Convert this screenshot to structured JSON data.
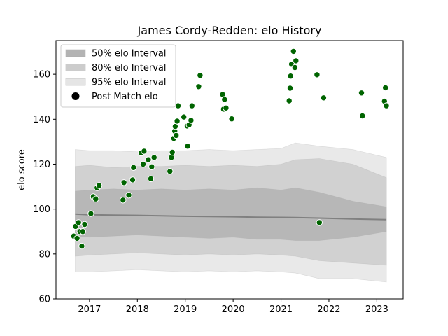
{
  "chart_data": {
    "type": "scatter",
    "title": "James Cordy-Redden: elo History",
    "xlabel": "",
    "ylabel": "elo score",
    "xlim": [
      2016.3,
      2023.55
    ],
    "ylim": [
      60,
      175
    ],
    "x_ticks": [
      2017,
      2018,
      2019,
      2020,
      2021,
      2022,
      2023
    ],
    "x_tick_labels": [
      "2017",
      "2018",
      "2019",
      "2020",
      "2021",
      "2022",
      "2023"
    ],
    "y_ticks": [
      60,
      80,
      100,
      120,
      140,
      160
    ],
    "y_tick_labels": [
      "60",
      "80",
      "100",
      "120",
      "140",
      "160"
    ],
    "grid": false,
    "legend_position": "top-left",
    "legend": [
      {
        "label": "50% elo Interval",
        "kind": "band",
        "color": "#b3b3b3"
      },
      {
        "label": "80% elo Interval",
        "kind": "band",
        "color": "#cccccc"
      },
      {
        "label": "95% elo Interval",
        "kind": "band",
        "color": "#e5e5e5"
      },
      {
        "label": "Post Match elo",
        "kind": "marker",
        "color": "#000000"
      }
    ],
    "colors": {
      "point_fill": "#006400",
      "point_stroke": "#ffffff",
      "median_line": "#808080",
      "band_50": "#b3b3b3",
      "band_80": "#cccccc",
      "band_95": "#e5e5e5"
    },
    "series": [
      {
        "kind": "band",
        "level": "95%",
        "x": [
          2016.7,
          2017.0,
          2017.5,
          2018.0,
          2018.5,
          2019.0,
          2019.5,
          2020.0,
          2020.5,
          2021.0,
          2021.3,
          2021.8,
          2022.5,
          2023.2
        ],
        "upper": [
          126.5,
          126.0,
          126.0,
          125.5,
          126.0,
          126.0,
          126.5,
          126.0,
          126.5,
          127.0,
          129.5,
          128.0,
          126.5,
          123.0
        ],
        "lower": [
          72.0,
          72.0,
          72.5,
          73.0,
          72.5,
          72.0,
          72.5,
          72.0,
          72.5,
          72.0,
          71.5,
          69.0,
          69.0,
          67.5
        ]
      },
      {
        "kind": "band",
        "level": "80%",
        "x": [
          2016.7,
          2017.0,
          2017.5,
          2018.0,
          2018.5,
          2019.0,
          2019.5,
          2020.0,
          2020.5,
          2021.0,
          2021.3,
          2021.8,
          2022.5,
          2023.2
        ],
        "upper": [
          119.0,
          119.5,
          118.5,
          119.0,
          119.0,
          119.5,
          119.0,
          119.5,
          119.0,
          120.0,
          122.0,
          122.5,
          120.0,
          114.0
        ],
        "lower": [
          79.0,
          79.5,
          80.0,
          80.5,
          80.0,
          79.5,
          80.0,
          79.5,
          80.0,
          79.5,
          79.0,
          77.0,
          76.0,
          75.0
        ]
      },
      {
        "kind": "band",
        "level": "50%",
        "x": [
          2016.7,
          2017.0,
          2017.5,
          2018.0,
          2018.5,
          2019.0,
          2019.5,
          2020.0,
          2020.5,
          2021.0,
          2021.3,
          2021.8,
          2022.5,
          2023.2
        ],
        "upper": [
          108.0,
          108.5,
          109.0,
          108.5,
          109.0,
          108.5,
          109.0,
          108.5,
          109.5,
          108.5,
          109.5,
          107.5,
          103.5,
          101.0
        ],
        "lower": [
          88.0,
          87.5,
          88.0,
          88.5,
          88.0,
          87.5,
          87.0,
          87.5,
          86.5,
          86.5,
          86.0,
          86.0,
          87.5,
          90.0
        ]
      },
      {
        "kind": "line",
        "name": "median",
        "x": [
          2016.7,
          2017.0,
          2017.5,
          2018.0,
          2018.5,
          2019.0,
          2019.5,
          2020.0,
          2020.5,
          2021.0,
          2021.3,
          2021.8,
          2022.5,
          2023.2
        ],
        "y": [
          97.8,
          97.5,
          97.3,
          97.2,
          97.0,
          96.8,
          96.7,
          96.6,
          96.4,
          96.3,
          96.2,
          96.0,
          95.6,
          95.3
        ]
      },
      {
        "kind": "points",
        "name": "Post Match elo",
        "points": [
          [
            2016.67,
            88.0
          ],
          [
            2016.71,
            92.3
          ],
          [
            2016.74,
            87.0
          ],
          [
            2016.77,
            94.0
          ],
          [
            2016.8,
            90.0
          ],
          [
            2016.84,
            83.5
          ],
          [
            2016.86,
            90.0
          ],
          [
            2016.9,
            93.2
          ],
          [
            2017.03,
            98.0
          ],
          [
            2017.08,
            105.5
          ],
          [
            2017.13,
            104.5
          ],
          [
            2017.16,
            109.5
          ],
          [
            2017.2,
            110.5
          ],
          [
            2017.7,
            104.0
          ],
          [
            2017.72,
            111.8
          ],
          [
            2017.82,
            106.2
          ],
          [
            2017.9,
            113.0
          ],
          [
            2017.92,
            118.5
          ],
          [
            2018.08,
            125.0
          ],
          [
            2018.12,
            120.0
          ],
          [
            2018.14,
            125.8
          ],
          [
            2018.23,
            122.0
          ],
          [
            2018.28,
            113.5
          ],
          [
            2018.3,
            118.8
          ],
          [
            2018.35,
            123.0
          ],
          [
            2018.68,
            116.8
          ],
          [
            2018.71,
            123.0
          ],
          [
            2018.73,
            125.3
          ],
          [
            2018.76,
            131.5
          ],
          [
            2018.78,
            134.7
          ],
          [
            2018.79,
            136.8
          ],
          [
            2018.81,
            132.8
          ],
          [
            2018.83,
            139.2
          ],
          [
            2018.85,
            146.0
          ],
          [
            2018.97,
            141.0
          ],
          [
            2019.05,
            128.0
          ],
          [
            2019.04,
            137.0
          ],
          [
            2019.08,
            137.5
          ],
          [
            2019.12,
            139.5
          ],
          [
            2019.14,
            146.0
          ],
          [
            2019.28,
            154.5
          ],
          [
            2019.31,
            159.5
          ],
          [
            2019.78,
            151.0
          ],
          [
            2019.82,
            148.8
          ],
          [
            2019.8,
            144.5
          ],
          [
            2019.85,
            145.0
          ],
          [
            2019.97,
            140.2
          ],
          [
            2021.17,
            148.2
          ],
          [
            2021.19,
            153.8
          ],
          [
            2021.2,
            159.2
          ],
          [
            2021.22,
            164.5
          ],
          [
            2021.26,
            170.2
          ],
          [
            2021.29,
            163.0
          ],
          [
            2021.31,
            166.0
          ],
          [
            2021.75,
            159.8
          ],
          [
            2021.8,
            94.0
          ],
          [
            2021.89,
            149.5
          ],
          [
            2022.68,
            151.7
          ],
          [
            2022.7,
            141.5
          ],
          [
            2023.16,
            148.0
          ],
          [
            2023.18,
            154.0
          ],
          [
            2023.2,
            146.0
          ]
        ]
      }
    ]
  }
}
